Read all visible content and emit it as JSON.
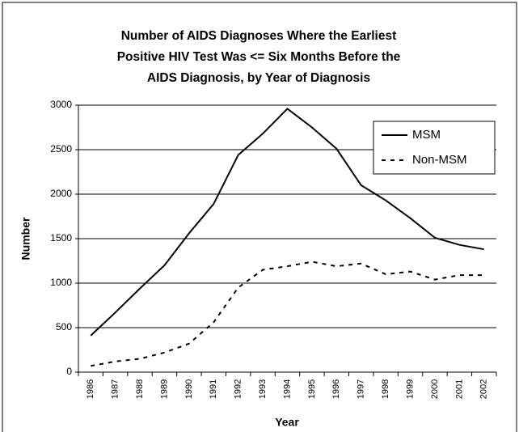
{
  "chart_data": {
    "type": "line",
    "title": [
      "Number of AIDS Diagnoses Where the Earliest",
      "Positive HIV Test Was <= Six Months Before the",
      "AIDS Diagnosis, by Year of Diagnosis"
    ],
    "x_label": "Year",
    "y_label": "Number",
    "categories": [
      "1986",
      "1987",
      "1988",
      "1989",
      "1990",
      "1991",
      "1992",
      "1993",
      "1994",
      "1995",
      "1996",
      "1997",
      "1998",
      "1999",
      "2000",
      "2001",
      "2002"
    ],
    "series": [
      {
        "name": "MSM",
        "color": "#000000",
        "style": "solid",
        "values": [
          410,
          670,
          940,
          1200,
          1560,
          1890,
          2440,
          2680,
          2960,
          2750,
          2510,
          2100,
          1930,
          1730,
          1510,
          1430,
          1380
        ]
      },
      {
        "name": "Non-MSM",
        "color": "#000000",
        "style": "dashed",
        "values": [
          70,
          120,
          150,
          220,
          320,
          560,
          950,
          1150,
          1190,
          1240,
          1190,
          1220,
          1100,
          1130,
          1040,
          1090,
          1090
        ]
      }
    ],
    "ylim": [
      0,
      3000
    ],
    "yticks": [
      0,
      500,
      1000,
      1500,
      2000,
      2500,
      3000
    ],
    "grid": true,
    "legend": "upper right"
  }
}
